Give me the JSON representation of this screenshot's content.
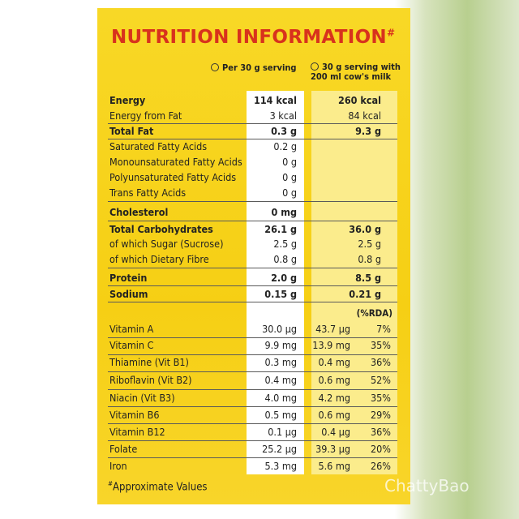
{
  "header": {
    "title": "NUTRITION INFORMATION",
    "title_mark": "#"
  },
  "column_headers": [
    "Per 30 g serving",
    "30 g serving with 200 ml cow's milk"
  ],
  "rda_header": "(%RDA)",
  "rows": [
    {
      "label": "Energy",
      "per_serving": "114 kcal",
      "with_milk": "260 kcal",
      "bold": true
    },
    {
      "label": "Energy from Fat",
      "per_serving": "3 kcal",
      "with_milk": "84 kcal",
      "bold": false
    },
    {
      "label": "Total Fat",
      "per_serving": "0.3 g",
      "with_milk": "9.3 g",
      "bold": true
    },
    {
      "label": "Saturated Fatty Acids",
      "per_serving": "0.2 g",
      "with_milk": null,
      "bold": false
    },
    {
      "label": "Monounsaturated Fatty Acids",
      "per_serving": "0 g",
      "with_milk": null,
      "bold": false
    },
    {
      "label": "Polyunsaturated Fatty Acids",
      "per_serving": "0 g",
      "with_milk": null,
      "bold": false
    },
    {
      "label": "Trans Fatty Acids",
      "per_serving": "0 g",
      "with_milk": null,
      "bold": false
    },
    {
      "label": "Cholesterol",
      "per_serving": "0 mg",
      "with_milk": null,
      "bold": true
    },
    {
      "label": "Total Carbohydrates",
      "per_serving": "26.1 g",
      "with_milk": "36.0 g",
      "bold": true
    },
    {
      "label": "of which Sugar (Sucrose)",
      "per_serving": "2.5 g",
      "with_milk": "2.5 g",
      "bold": false
    },
    {
      "label": "of which Dietary Fibre",
      "per_serving": "0.8 g",
      "with_milk": "0.8 g",
      "bold": false
    },
    {
      "label": "Protein",
      "per_serving": "2.0 g",
      "with_milk": "8.5 g",
      "bold": true
    },
    {
      "label": "Sodium",
      "per_serving": "0.15 g",
      "with_milk": "0.21 g",
      "bold": true
    },
    {
      "label": "Vitamin A",
      "per_serving": "30.0 µg",
      "with_milk": "43.7 µg",
      "rda": "7%",
      "bold": false
    },
    {
      "label": "Vitamin C",
      "per_serving": "9.9 mg",
      "with_milk": "13.9 mg",
      "rda": "35%",
      "bold": false
    },
    {
      "label": "Thiamine (Vit B1)",
      "per_serving": "0.3 mg",
      "with_milk": "0.4 mg",
      "rda": "36%",
      "bold": false
    },
    {
      "label": "Riboflavin (Vit B2)",
      "per_serving": "0.4 mg",
      "with_milk": "0.6 mg",
      "rda": "52%",
      "bold": false
    },
    {
      "label": "Niacin (Vit B3)",
      "per_serving": "4.0 mg",
      "with_milk": "4.2 mg",
      "rda": "35%",
      "bold": false
    },
    {
      "label": "Vitamin B6",
      "per_serving": "0.5 mg",
      "with_milk": "0.6 mg",
      "rda": "29%",
      "bold": false
    },
    {
      "label": "Vitamin B12",
      "per_serving": "0.1 µg",
      "with_milk": "0.4 µg",
      "rda": "36%",
      "bold": false
    },
    {
      "label": "Folate",
      "per_serving": "25.2 µg",
      "with_milk": "39.3 µg",
      "rda": "20%",
      "bold": false
    },
    {
      "label": "Iron",
      "per_serving": "5.3 mg",
      "with_milk": "5.6 mg",
      "rda": "26%",
      "bold": false
    }
  ],
  "footnote_mark": "#",
  "footnote": "Approximate Values",
  "watermark": "ChattyBao"
}
